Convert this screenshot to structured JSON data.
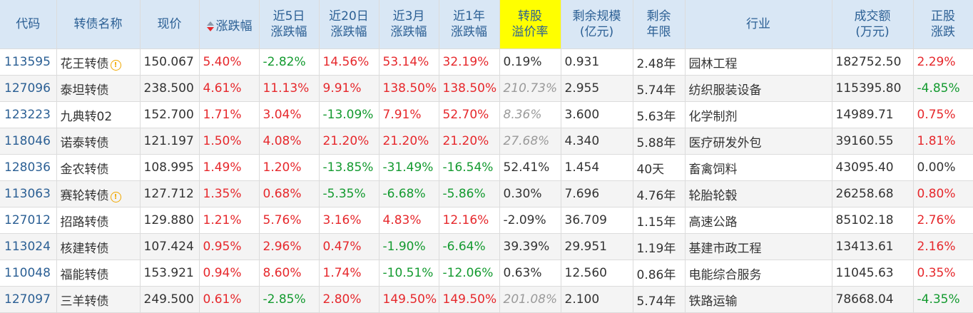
{
  "headers": [
    {
      "l1": "代码",
      "l2": ""
    },
    {
      "l1": "转债名称",
      "l2": ""
    },
    {
      "l1": "现价",
      "l2": ""
    },
    {
      "l1": "涨跌幅",
      "l2": ""
    },
    {
      "l1": "近5日",
      "l2": "涨跌幅"
    },
    {
      "l1": "近20日",
      "l2": "涨跌幅"
    },
    {
      "l1": "近3月",
      "l2": "涨跌幅"
    },
    {
      "l1": "近1年",
      "l2": "涨跌幅"
    },
    {
      "l1": "转股",
      "l2": "溢价率"
    },
    {
      "l1": "剩余规模",
      "l2": "(亿元)"
    },
    {
      "l1": "剩余",
      "l2": "年限"
    },
    {
      "l1": "行业",
      "l2": ""
    },
    {
      "l1": "成交额",
      "l2": "(万元)"
    },
    {
      "l1": "正股",
      "l2": "涨跌"
    }
  ],
  "rows": [
    {
      "code": "113595",
      "name": "花王转债",
      "info": true,
      "price": "150.067",
      "chg": "5.40%",
      "d5": "-2.82%",
      "d20": "14.56%",
      "m3": "53.14%",
      "y1": "32.19%",
      "prem": "0.19%",
      "prem_dim": false,
      "scale": "0.931",
      "years": "2.48年",
      "industry": "园林工程",
      "amount": "182752.50",
      "stock": "2.29%"
    },
    {
      "code": "127096",
      "name": "泰坦转债",
      "info": false,
      "price": "238.500",
      "chg": "4.61%",
      "d5": "11.13%",
      "d20": "9.91%",
      "m3": "138.50%",
      "y1": "138.50%",
      "prem": "210.73%",
      "prem_dim": true,
      "scale": "2.955",
      "years": "5.74年",
      "industry": "纺织服装设备",
      "amount": "115395.80",
      "stock": "-4.85%"
    },
    {
      "code": "123223",
      "name": "九典转02",
      "info": false,
      "price": "152.700",
      "chg": "1.71%",
      "d5": "3.04%",
      "d20": "-13.09%",
      "m3": "7.91%",
      "y1": "52.70%",
      "prem": "8.36%",
      "prem_dim": true,
      "scale": "3.600",
      "years": "5.63年",
      "industry": "化学制剂",
      "amount": "14989.71",
      "stock": "0.75%"
    },
    {
      "code": "118046",
      "name": "诺泰转债",
      "info": false,
      "price": "121.197",
      "chg": "1.50%",
      "d5": "4.08%",
      "d20": "21.20%",
      "m3": "21.20%",
      "y1": "21.20%",
      "prem": "27.68%",
      "prem_dim": true,
      "scale": "4.340",
      "years": "5.88年",
      "industry": "医疗研发外包",
      "amount": "39160.55",
      "stock": "1.81%"
    },
    {
      "code": "128036",
      "name": "金农转债",
      "info": false,
      "price": "108.995",
      "chg": "1.49%",
      "d5": "1.20%",
      "d20": "-13.85%",
      "m3": "-31.49%",
      "y1": "-16.54%",
      "prem": "52.41%",
      "prem_dim": false,
      "scale": "1.454",
      "years": "40天",
      "industry": "畜禽饲料",
      "amount": "43095.40",
      "stock": "0.00%"
    },
    {
      "code": "113063",
      "name": "赛轮转债",
      "info": true,
      "price": "127.712",
      "chg": "1.35%",
      "d5": "0.68%",
      "d20": "-5.35%",
      "m3": "-6.68%",
      "y1": "-5.86%",
      "prem": "0.30%",
      "prem_dim": false,
      "scale": "7.696",
      "years": "4.76年",
      "industry": "轮胎轮毂",
      "amount": "26258.68",
      "stock": "0.80%"
    },
    {
      "code": "127012",
      "name": "招路转债",
      "info": false,
      "price": "129.880",
      "chg": "1.21%",
      "d5": "5.76%",
      "d20": "3.16%",
      "m3": "4.83%",
      "y1": "12.16%",
      "prem": "-2.09%",
      "prem_dim": false,
      "scale": "36.709",
      "years": "1.15年",
      "industry": "高速公路",
      "amount": "85102.18",
      "stock": "2.76%"
    },
    {
      "code": "113024",
      "name": "核建转债",
      "info": false,
      "price": "107.424",
      "chg": "0.95%",
      "d5": "2.96%",
      "d20": "0.47%",
      "m3": "-1.90%",
      "y1": "-6.64%",
      "prem": "39.39%",
      "prem_dim": false,
      "scale": "29.951",
      "years": "1.19年",
      "industry": "基建市政工程",
      "amount": "13413.61",
      "stock": "2.16%"
    },
    {
      "code": "110048",
      "name": "福能转债",
      "info": false,
      "price": "153.921",
      "chg": "0.94%",
      "d5": "8.60%",
      "d20": "1.74%",
      "m3": "-10.51%",
      "y1": "-12.06%",
      "prem": "0.63%",
      "prem_dim": false,
      "scale": "12.560",
      "years": "0.86年",
      "industry": "电能综合服务",
      "amount": "11045.63",
      "stock": "0.35%"
    },
    {
      "code": "127097",
      "name": "三羊转债",
      "info": false,
      "price": "249.500",
      "chg": "0.61%",
      "d5": "-2.85%",
      "d20": "2.80%",
      "m3": "149.50%",
      "y1": "149.50%",
      "prem": "201.08%",
      "prem_dim": true,
      "scale": "2.100",
      "years": "5.74年",
      "industry": "铁路运输",
      "amount": "78668.04",
      "stock": "-4.35%"
    }
  ],
  "icons": {
    "info": "info-circle-icon",
    "sort": "sort-desc-icon"
  },
  "colors": {
    "up": "#e6282c",
    "down": "#139a2f",
    "header_bg": "#d9e7f5",
    "header_text": "#2b5f94",
    "highlight": "#ffff00"
  }
}
